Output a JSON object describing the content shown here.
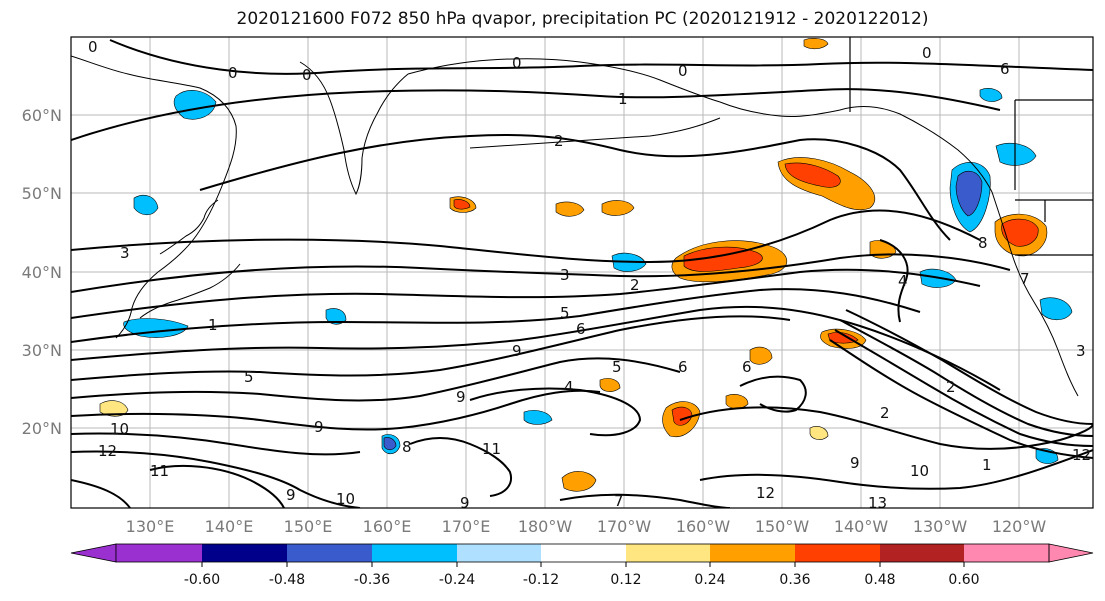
{
  "title": "2020121600 F072 850 hPa qvapor, precipitation PC (2020121912 - 2020122012)",
  "lat_labels": [
    "60°N",
    "50°N",
    "40°N",
    "30°N",
    "20°N"
  ],
  "lon_labels": [
    "130°E",
    "140°E",
    "150°E",
    "160°E",
    "170°E",
    "180°W",
    "170°W",
    "160°W",
    "150°W",
    "140°W",
    "130°W",
    "120°W"
  ],
  "colorbar": {
    "colors": [
      "#9b30d0",
      "#00008b",
      "#3a5bcc",
      "#00bfff",
      "#b0e0ff",
      "#ffffff",
      "#ffe680",
      "#ffa000",
      "#ff4000",
      "#b22222",
      "#ff88b0"
    ],
    "tick_labels": [
      "-0.60",
      "-0.48",
      "-0.36",
      "-0.24",
      "-0.12",
      "0.12",
      "0.24",
      "0.36",
      "0.48",
      "0.60"
    ]
  },
  "contour_labels": [
    "0",
    "0",
    "0",
    "0",
    "0",
    "0",
    "1",
    "2",
    "3",
    "5",
    "6",
    "9",
    "5",
    "4",
    "5",
    "6",
    "4",
    "2",
    "9",
    "10",
    "12",
    "11",
    "9",
    "8",
    "9",
    "9",
    "10",
    "12",
    "13",
    "10",
    "9",
    "7",
    "11",
    "1",
    "7",
    "12",
    "2",
    "3",
    "6",
    "8",
    "2",
    "3",
    "1",
    "6"
  ]
}
